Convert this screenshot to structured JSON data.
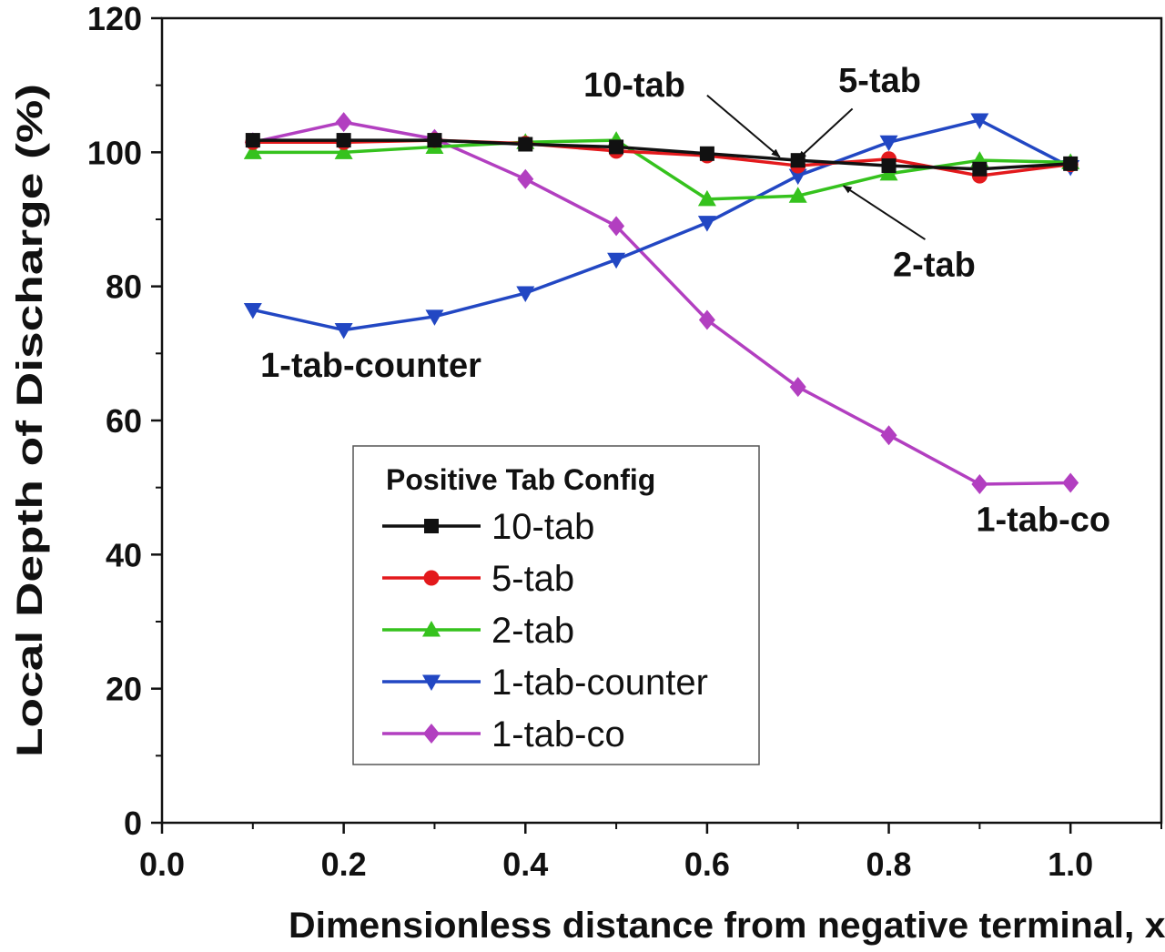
{
  "chart_data": {
    "type": "line",
    "title": "",
    "xlabel": "Dimensionless distance from negative terminal, x/L",
    "ylabel": "Local Depth of Discharge (%)",
    "xlim": [
      0.0,
      1.1
    ],
    "ylim": [
      0,
      120
    ],
    "x_ticks": [
      "0.0",
      "0.2",
      "0.4",
      "0.6",
      "0.8",
      "1.0"
    ],
    "y_ticks": [
      "0",
      "20",
      "40",
      "60",
      "80",
      "100",
      "120"
    ],
    "x": [
      0.1,
      0.2,
      0.3,
      0.4,
      0.5,
      0.6,
      0.7,
      0.8,
      0.9,
      1.0
    ],
    "series": [
      {
        "name": "10-tab",
        "color": "#111111",
        "marker": "square",
        "values": [
          101.8,
          101.8,
          101.8,
          101.2,
          100.8,
          99.8,
          98.8,
          98.0,
          97.5,
          98.3
        ]
      },
      {
        "name": "5-tab",
        "color": "#e3191c",
        "marker": "circle",
        "values": [
          101.5,
          101.5,
          101.8,
          101.3,
          100.2,
          99.5,
          98.0,
          99.0,
          96.5,
          98.2
        ]
      },
      {
        "name": "2-tab",
        "color": "#35c21d",
        "marker": "triangle-up",
        "values": [
          100.0,
          100.0,
          100.8,
          101.5,
          101.8,
          93.0,
          93.5,
          96.8,
          98.8,
          98.5
        ]
      },
      {
        "name": "1-tab-counter",
        "color": "#2247c3",
        "marker": "triangle-down",
        "values": [
          76.5,
          73.5,
          75.5,
          79.0,
          84.0,
          89.5,
          96.5,
          101.5,
          104.8,
          97.8
        ]
      },
      {
        "name": "1-tab-co",
        "color": "#b23fc0",
        "marker": "diamond",
        "values": [
          101.5,
          104.5,
          102.0,
          96.0,
          89.0,
          75.0,
          65.0,
          57.8,
          50.5,
          50.7
        ]
      }
    ],
    "legend": {
      "title": "Positive Tab Config",
      "position": "center-left"
    },
    "annotations": [
      {
        "text": "10-tab",
        "x": 0.52,
        "y": 108.3
      },
      {
        "text": "5-tab",
        "x": 0.79,
        "y": 109
      },
      {
        "text": "2-tab",
        "x": 0.85,
        "y": 81.5
      },
      {
        "text": "1-tab-counter",
        "x": 0.23,
        "y": 66.5
      },
      {
        "text": "1-tab-co",
        "x": 0.97,
        "y": 43.5
      }
    ],
    "arrows": [
      {
        "label": "10-tab",
        "from": [
          0.6,
          108.5
        ],
        "to": [
          0.68,
          99.3
        ]
      },
      {
        "label": "5-tab",
        "from": [
          0.76,
          106.5
        ],
        "to": [
          0.7,
          99.0
        ]
      },
      {
        "label": "2-tab",
        "from": [
          0.84,
          87.0
        ],
        "to": [
          0.75,
          95.0
        ]
      }
    ]
  }
}
